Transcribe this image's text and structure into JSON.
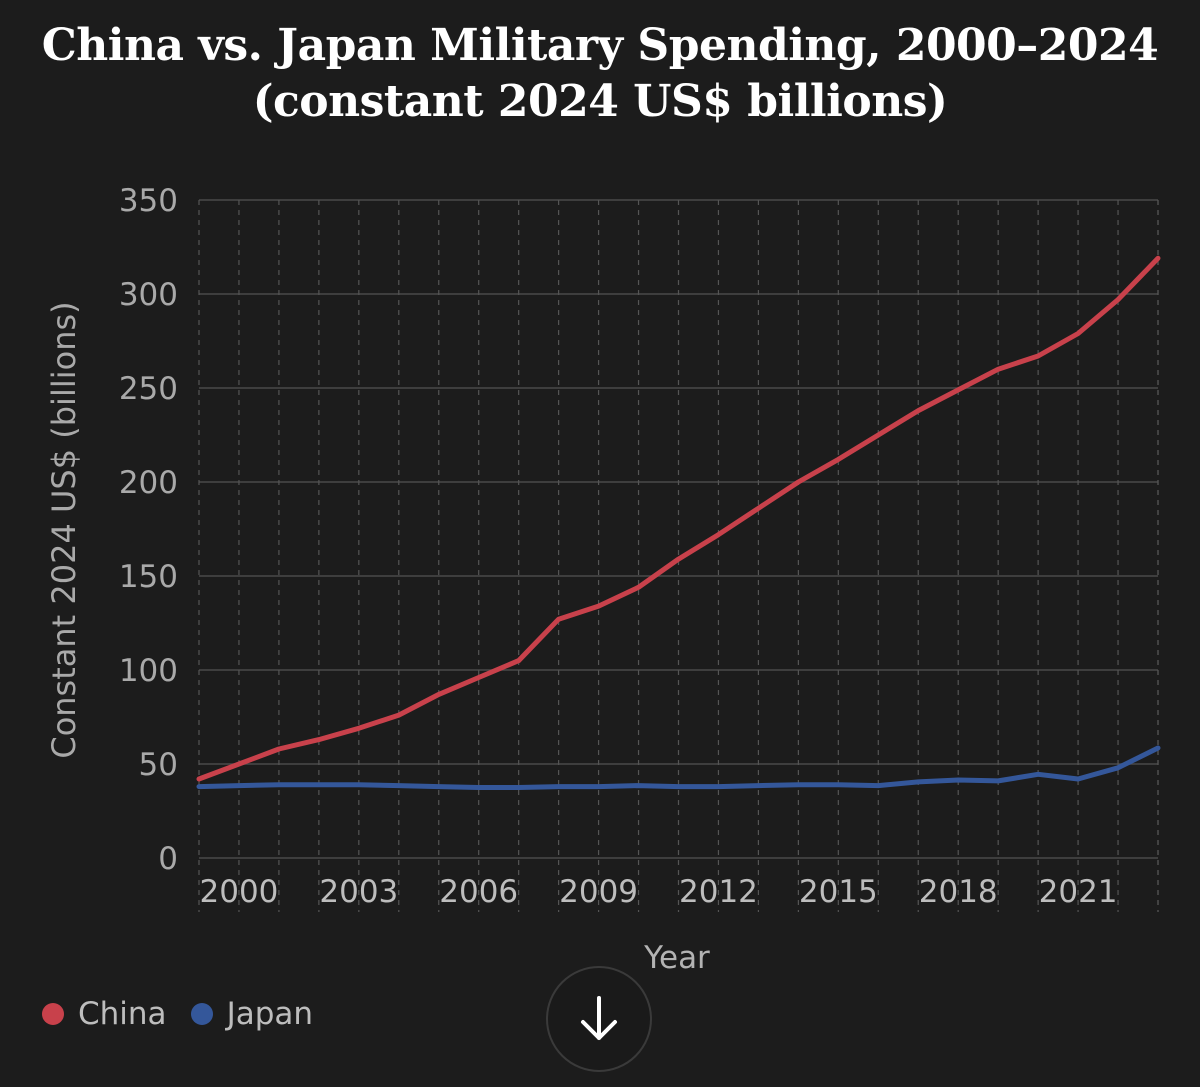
{
  "chart_data": {
    "type": "line",
    "title": "China vs. Japan Military Spending, 2000–2024 (constant 2024 US$ billions)",
    "xlabel": "Year",
    "ylabel": "Constant 2024 US$ (billions)",
    "ylim": [
      0,
      350
    ],
    "yticks": [
      "0",
      "50",
      "100",
      "150",
      "200",
      "250",
      "300",
      "350"
    ],
    "xticks": [
      "2000",
      "2003",
      "2006",
      "2009",
      "2012",
      "2015",
      "2018",
      "2021"
    ],
    "grid": true,
    "legend_position": "bottom-left",
    "x": [
      1999,
      2000,
      2001,
      2002,
      2003,
      2004,
      2005,
      2006,
      2007,
      2008,
      2009,
      2010,
      2011,
      2012,
      2013,
      2014,
      2015,
      2016,
      2017,
      2018,
      2019,
      2020,
      2021,
      2022,
      2023
    ],
    "series": [
      {
        "name": "China",
        "color": "#c8414b",
        "values": [
          42,
          50,
          58,
          63,
          69,
          76,
          87,
          96,
          105,
          127,
          134,
          144,
          159,
          172,
          186,
          200,
          212,
          225,
          238,
          249,
          260,
          267,
          279,
          297,
          319
        ]
      },
      {
        "name": "Japan",
        "color": "#34579a",
        "values": [
          38,
          38.5,
          39,
          39,
          39,
          38.5,
          38,
          37.5,
          37.5,
          38,
          38,
          38.5,
          38,
          38,
          38.5,
          39,
          39,
          38.5,
          40.5,
          41.5,
          41,
          44.5,
          42,
          48,
          58.5
        ]
      }
    ]
  },
  "scroll_button": {
    "icon": "arrow-down-icon"
  }
}
